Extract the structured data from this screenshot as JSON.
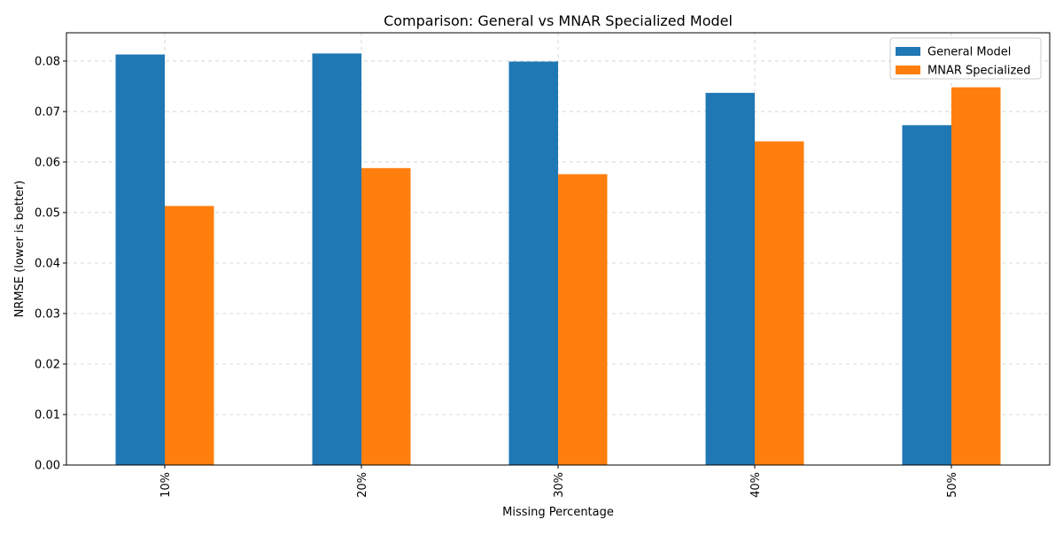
{
  "chart_data": {
    "type": "bar",
    "title": "Comparison: General vs MNAR Specialized Model",
    "xlabel": "Missing Percentage",
    "ylabel": "NRMSE (lower is better)",
    "categories": [
      "10%",
      "20%",
      "30%",
      "40%",
      "50%"
    ],
    "series": [
      {
        "name": "General Model",
        "color": "#1f77b4",
        "values": [
          0.0813,
          0.0815,
          0.0799,
          0.0737,
          0.0673
        ]
      },
      {
        "name": "MNAR Specialized",
        "color": "#ff7f0e",
        "values": [
          0.0513,
          0.0588,
          0.0576,
          0.0641,
          0.0748
        ]
      }
    ],
    "ylim": [
      0,
      0.0856
    ],
    "yticks": [
      0.0,
      0.01,
      0.02,
      0.03,
      0.04,
      0.05,
      0.06,
      0.07,
      0.08
    ],
    "ytick_labels": [
      "0.00",
      "0.01",
      "0.02",
      "0.03",
      "0.04",
      "0.05",
      "0.06",
      "0.07",
      "0.08"
    ],
    "grid": true,
    "legend_position": "top-right",
    "xtick_rotation": "vertical"
  }
}
